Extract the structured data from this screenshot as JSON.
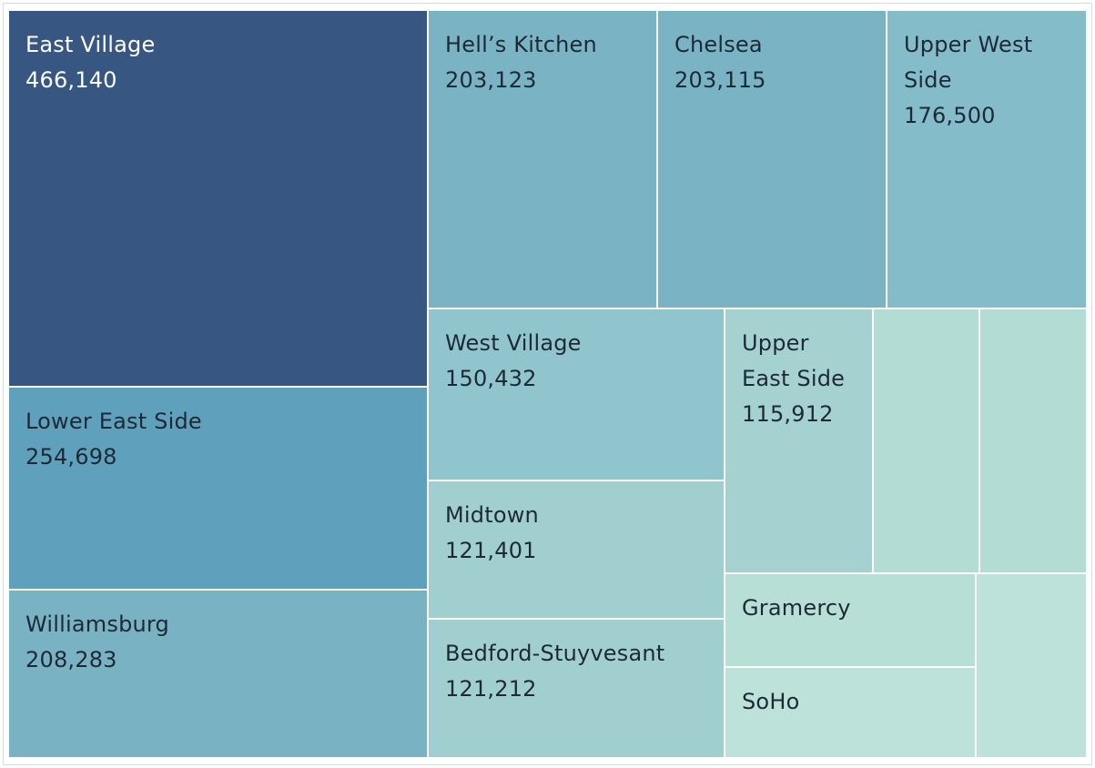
{
  "chart_data": {
    "type": "treemap",
    "title": "",
    "tiles": [
      {
        "name": "East Village",
        "value": 466140,
        "label": "466,140",
        "color": "#375782",
        "text_color": "#ffffff",
        "show_label": true
      },
      {
        "name": "Lower East Side",
        "value": 254698,
        "label": "254,698",
        "color": "#5fa1bc",
        "text_color": "#1d2a36",
        "show_label": true
      },
      {
        "name": "Williamsburg",
        "value": 208283,
        "label": "208,283",
        "color": "#79b2c3",
        "text_color": "#1d2a36",
        "show_label": true
      },
      {
        "name": "Hell’s Kitchen",
        "value": 203123,
        "label": "203,123",
        "color": "#7ab4c4",
        "text_color": "#1d2a36",
        "show_label": true
      },
      {
        "name": "Chelsea",
        "value": 203115,
        "label": "203,115",
        "color": "#7ab4c4",
        "text_color": "#1d2a36",
        "show_label": true
      },
      {
        "name": "Upper West Side",
        "value": 176500,
        "label": "176,500",
        "color": "#85bcca",
        "text_color": "#1d2a36",
        "show_label": true
      },
      {
        "name": "West Village",
        "value": 150432,
        "label": "150,432",
        "color": "#90c5ce",
        "text_color": "#1d2a36",
        "show_label": true
      },
      {
        "name": "Midtown",
        "value": 121401,
        "label": "121,401",
        "color": "#a1cfd0",
        "text_color": "#1d2a36",
        "show_label": true
      },
      {
        "name": "Bedford-Stuyvesant",
        "value": 121212,
        "label": "121,212",
        "color": "#a1cfd0",
        "text_color": "#1d2a36",
        "show_label": true
      },
      {
        "name": "Upper East Side",
        "value": 115912,
        "label": "115,912",
        "color": "#a5d1d1",
        "text_color": "#1d2a36",
        "show_label": true
      },
      {
        "name": "",
        "value": 81000,
        "label": "",
        "color": "#b3dcd5",
        "text_color": "#1d2a36",
        "show_label": false
      },
      {
        "name": "",
        "value": 81000,
        "label": "",
        "color": "#b3dcd5",
        "text_color": "#1d2a36",
        "show_label": false
      },
      {
        "name": "Gramercy",
        "value": 60000,
        "label": "",
        "color": "#b7dfd6",
        "text_color": "#1d2a36",
        "show_label": true
      },
      {
        "name": "SoHo",
        "value": 60000,
        "label": "",
        "color": "#bce2d9",
        "text_color": "#1d2a36",
        "show_label": true
      },
      {
        "name": "",
        "value": 49000,
        "label": "",
        "color": "#bce2d9",
        "text_color": "#1d2a36",
        "show_label": false
      }
    ]
  }
}
